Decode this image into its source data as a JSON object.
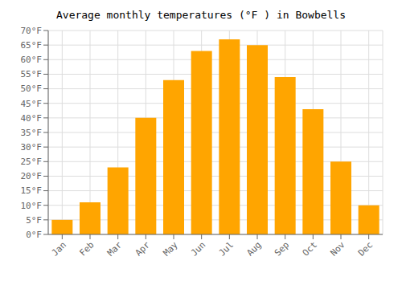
{
  "chart_data": {
    "type": "bar",
    "title": "Average monthly temperatures (°F ) in Bowbells",
    "categories": [
      "Jan",
      "Feb",
      "Mar",
      "Apr",
      "May",
      "Jun",
      "Jul",
      "Aug",
      "Sep",
      "Oct",
      "Nov",
      "Dec"
    ],
    "values": [
      5,
      11,
      23,
      40,
      53,
      63,
      67,
      65,
      54,
      43,
      25,
      10
    ],
    "color": "#FFA500",
    "ylim": [
      0,
      70
    ],
    "yticks": [
      {
        "value": 0,
        "label": "0°F"
      },
      {
        "value": 5,
        "label": "5°F"
      },
      {
        "value": 10,
        "label": "10°F"
      },
      {
        "value": 15,
        "label": "15°F"
      },
      {
        "value": 20,
        "label": "20°F"
      },
      {
        "value": 25,
        "label": "25°F"
      },
      {
        "value": 30,
        "label": "30°F"
      },
      {
        "value": 35,
        "label": "35°F"
      },
      {
        "value": 40,
        "label": "40°F"
      },
      {
        "value": 45,
        "label": "45°F"
      },
      {
        "value": 50,
        "label": "50°F"
      },
      {
        "value": 55,
        "label": "55°F"
      },
      {
        "value": 60,
        "label": "60°F"
      },
      {
        "value": 65,
        "label": "65°F"
      },
      {
        "value": 70,
        "label": "70°F"
      }
    ],
    "grid": true
  }
}
